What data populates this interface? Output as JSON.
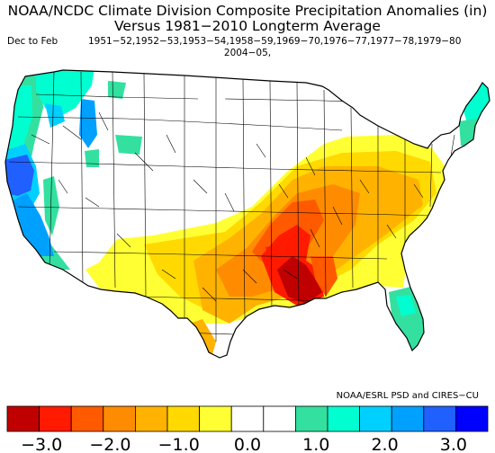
{
  "title_line1": "NOAA/NCDC Climate Division Composite Precipitation Anomalies (in)",
  "title_line2": "Versus 1981−2010 Longterm Average",
  "season": "Dec to Feb",
  "years_line1": "1951−52,1952−53,1953−54,1958−59,1969−70,1976−77,1977−78,1979−80",
  "years_line2": "2004−05,",
  "credit": "NOAA/ESRL PSD and CIRES−CU",
  "colorbar": {
    "colors": [
      "#c00000",
      "#ff1a00",
      "#ff5a00",
      "#ff8c00",
      "#ffb300",
      "#ffd900",
      "#ffff33",
      "#ffffff",
      "#ffffff",
      "#33e0a0",
      "#00ffd0",
      "#00d0ff",
      "#00a0ff",
      "#2060ff",
      "#0000ff"
    ],
    "ticks": [
      "−3.0",
      "−2.0",
      "−1.0",
      "0.0",
      "1.0",
      "2.0",
      "3.0"
    ],
    "tick_values": [
      -3.0,
      -2.0,
      -1.0,
      0.0,
      1.0,
      2.0,
      3.0
    ],
    "range": [
      -3.5,
      3.5
    ]
  },
  "map_colors": {
    "dry1": "#ffff33",
    "dry2": "#ffd900",
    "dry3": "#ffb300",
    "dry4": "#ff8c00",
    "dry5": "#ff5a00",
    "dry6": "#ff1a00",
    "dry7": "#c00000",
    "wet1": "#33e0a0",
    "wet2": "#00ffd0",
    "wet3": "#00d0ff",
    "wet4": "#00a0ff",
    "wet5": "#2060ff"
  }
}
